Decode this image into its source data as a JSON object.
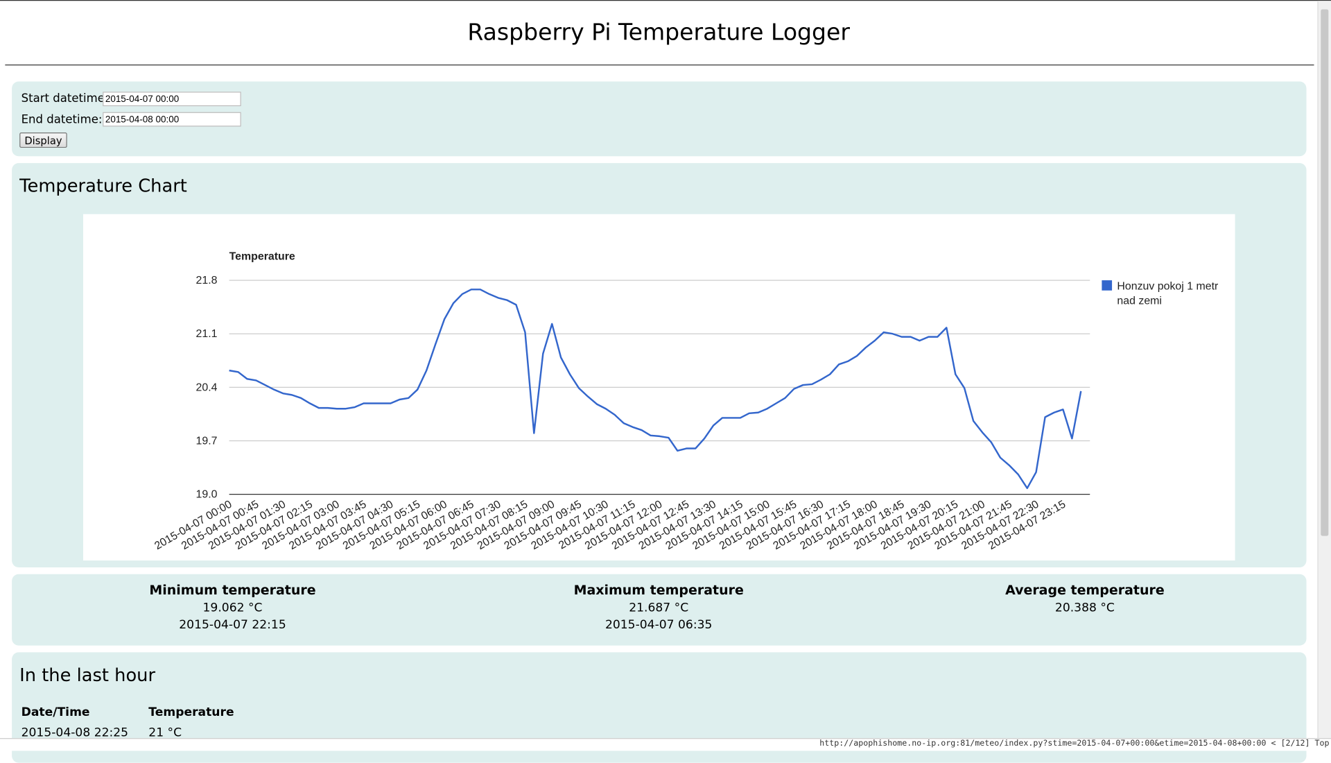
{
  "header": {
    "title": "Raspberry Pi Temperature Logger"
  },
  "form": {
    "start_label": "Start datetime:",
    "start_value": "2015-04-07 00:00",
    "end_label": "End datetime:",
    "end_value": "2015-04-08 00:00",
    "button": "Display"
  },
  "chart_section": {
    "title": "Temperature Chart"
  },
  "chart_data": {
    "type": "line",
    "y_label": "Temperature",
    "categories": [
      "2015-04-07 00:00",
      null,
      null,
      "2015-04-07 00:45",
      null,
      null,
      "2015-04-07 01:30",
      null,
      null,
      "2015-04-07 02:15",
      null,
      null,
      "2015-04-07 03:00",
      null,
      null,
      "2015-04-07 03:45",
      null,
      null,
      "2015-04-07 04:30",
      null,
      null,
      "2015-04-07 05:15",
      null,
      null,
      "2015-04-07 06:00",
      null,
      null,
      "2015-04-07 06:45",
      null,
      null,
      "2015-04-07 07:30",
      null,
      null,
      "2015-04-07 08:15",
      null,
      null,
      "2015-04-07 09:00",
      null,
      null,
      "2015-04-07 09:45",
      null,
      null,
      "2015-04-07 10:30",
      null,
      null,
      "2015-04-07 11:15",
      null,
      null,
      "2015-04-07 12:00",
      null,
      null,
      "2015-04-07 12:45",
      null,
      null,
      "2015-04-07 13:30",
      null,
      null,
      "2015-04-07 14:15",
      null,
      null,
      "2015-04-07 15:00",
      null,
      null,
      "2015-04-07 15:45",
      null,
      null,
      "2015-04-07 16:30",
      null,
      null,
      "2015-04-07 17:15",
      null,
      null,
      "2015-04-07 18:00",
      null,
      null,
      "2015-04-07 18:45",
      null,
      null,
      "2015-04-07 19:30",
      null,
      null,
      "2015-04-07 20:15",
      null,
      null,
      "2015-04-07 21:00",
      null,
      null,
      "2015-04-07 21:45",
      null,
      null,
      "2015-04-07 22:30",
      null,
      null,
      "2015-04-07 23:15",
      null,
      null
    ],
    "series": [
      {
        "name": "Honzuv pokoj 1 metr nad zemi",
        "color": "#3366cc",
        "values": [
          20.62,
          20.6,
          20.51,
          20.49,
          20.43,
          20.37,
          20.32,
          20.3,
          20.26,
          20.19,
          20.13,
          20.13,
          20.12,
          20.12,
          20.14,
          20.19,
          20.19,
          20.19,
          20.19,
          20.24,
          20.26,
          20.37,
          20.62,
          20.96,
          21.29,
          21.5,
          21.62,
          21.68,
          21.68,
          21.62,
          21.57,
          21.54,
          21.48,
          21.12,
          19.8,
          20.84,
          21.23,
          20.79,
          20.57,
          20.39,
          20.28,
          20.18,
          20.12,
          20.04,
          19.93,
          19.88,
          19.84,
          19.77,
          19.76,
          19.74,
          19.57,
          19.6,
          19.6,
          19.73,
          19.9,
          20.0,
          20.0,
          20.0,
          20.06,
          20.07,
          20.12,
          20.19,
          20.26,
          20.38,
          20.43,
          20.44,
          20.5,
          20.57,
          20.7,
          20.74,
          20.81,
          20.92,
          21.01,
          21.12,
          21.1,
          21.06,
          21.06,
          21.01,
          21.06,
          21.06,
          21.18,
          20.57,
          20.39,
          19.96,
          19.81,
          19.68,
          19.48,
          19.38,
          19.26,
          19.08,
          19.29,
          20.01,
          20.07,
          20.11,
          19.73,
          20.35
        ]
      }
    ],
    "ylim": [
      19.0,
      21.8
    ],
    "yticks": [
      {
        "value": 19.0,
        "label": "19.0"
      },
      19.7,
      20.4,
      21.1,
      21.8
    ],
    "grid": true,
    "legend": "right"
  },
  "stats": [
    {
      "title": "Minimum temperature",
      "value": "19.062 °C",
      "time": "2015-04-07 22:15"
    },
    {
      "title": "Maximum temperature",
      "value": "21.687 °C",
      "time": "2015-04-07 06:35"
    },
    {
      "title": "Average temperature",
      "value": "20.388 °C"
    }
  ],
  "last_hour": {
    "title": "In the last hour",
    "headers": [
      "Date/Time",
      "Temperature"
    ],
    "rows": [
      [
        "2015-04-08 22:25",
        "21 °C"
      ]
    ]
  },
  "status_bar": "http://apophishome.no-ip.org:81/meteo/index.py?stime=2015-04-07+00:00&etime=2015-04-08+00:00 < [2/12] Top"
}
